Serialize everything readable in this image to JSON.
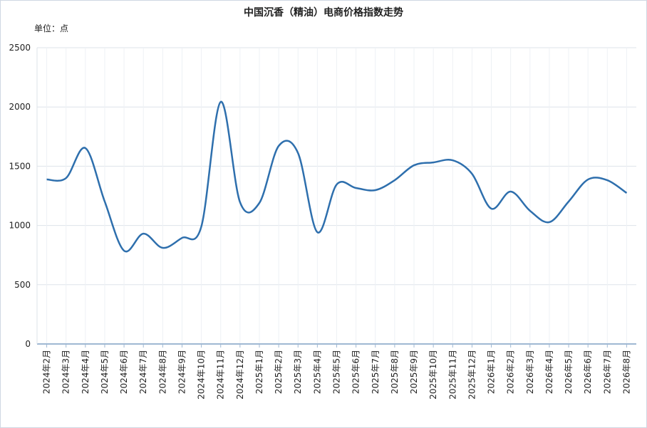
{
  "chart_data": {
    "type": "line",
    "title": "中国沉香（精油）电商价格指数走势",
    "subtitle": "单位：点",
    "categories": [
      "2024年2月",
      "2024年3月",
      "2024年4月",
      "2024年5月",
      "2024年6月",
      "2024年7月",
      "2024年8月",
      "2024年9月",
      "2024年10月",
      "2024年11月",
      "2024年12月",
      "2025年1月",
      "2025年2月",
      "2025年3月",
      "2025年4月",
      "2025年5月",
      "2025年6月",
      "2025年7月",
      "2025年8月",
      "2025年9月",
      "2025年10月",
      "2025年11月",
      "2025年12月",
      "2026年1月",
      "2026年2月",
      "2026年3月",
      "2026年4月",
      "2026年5月",
      "2026年6月",
      "2026年7月",
      "2026年8月"
    ],
    "values": [
      1388,
      1400,
      1653,
      1202,
      787,
      931,
      811,
      895,
      992,
      2043,
      1196,
      1190,
      1671,
      1611,
      943,
      1346,
      1316,
      1298,
      1382,
      1508,
      1532,
      1550,
      1436,
      1142,
      1286,
      1124,
      1028,
      1202,
      1388,
      1382,
      1274
    ],
    "color": "#2e6fad",
    "ylim": [
      0,
      2500
    ],
    "yticks": [
      0,
      500,
      1000,
      1500,
      2000,
      2500
    ],
    "grid": true,
    "smooth": true
  }
}
